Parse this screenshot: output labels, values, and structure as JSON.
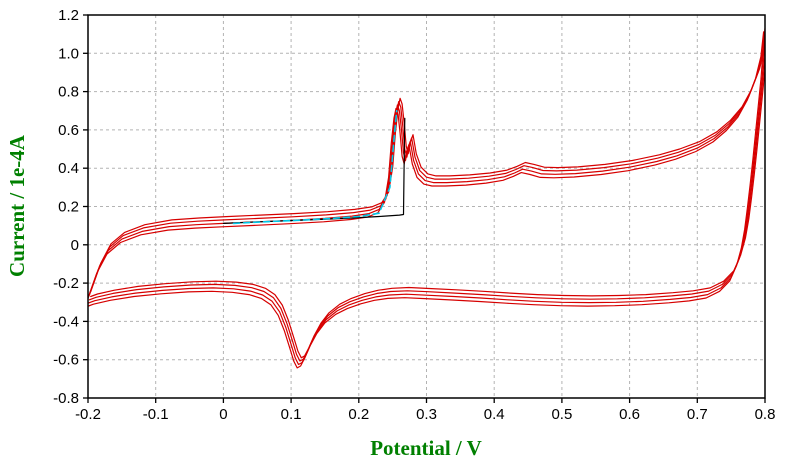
{
  "figure": {
    "background": "#ffffff",
    "axis_color": "#000000",
    "grid_color": "#b3b3b3",
    "label_color": "#008000"
  },
  "chart_data": {
    "type": "line",
    "title": "",
    "xlabel": "Potential / V",
    "ylabel": "Current / 1e-4A",
    "xlim": [
      -0.2,
      0.8
    ],
    "ylim": [
      -0.8,
      1.2
    ],
    "xticks": [
      -0.2,
      -0.1,
      0,
      0.1,
      0.2,
      0.3,
      0.4,
      0.5,
      0.6,
      0.7,
      0.8
    ],
    "xtick_labels": [
      "-0.2",
      "-0.1",
      "0",
      "0.1",
      "0.2",
      "0.3",
      "0.4",
      "0.5",
      "0.6",
      "0.7",
      "0.8"
    ],
    "yticks": [
      -0.8,
      -0.6,
      -0.4,
      -0.2,
      0,
      0.2,
      0.4,
      0.6,
      0.8,
      1.0,
      1.2
    ],
    "ytick_labels": [
      "-0.8",
      "-0.6",
      "-0.4",
      "-0.2",
      "0",
      "0.2",
      "0.4",
      "0.6",
      "0.8",
      "1.0",
      "1.2"
    ],
    "grid": "dashed",
    "legend": "none",
    "series": [
      {
        "name": "cv-cycles-red",
        "color": "#d60000",
        "style": "solid",
        "width": 1.2,
        "repeat_offsets": [
          [
            0,
            0
          ],
          [
            0.002,
            0.018
          ],
          [
            -0.002,
            -0.018
          ],
          [
            0.004,
            0.035
          ]
        ],
        "x": [
          -0.2,
          -0.185,
          -0.17,
          -0.15,
          -0.12,
          -0.08,
          -0.04,
          0.0,
          0.05,
          0.1,
          0.15,
          0.19,
          0.215,
          0.23,
          0.24,
          0.246,
          0.25,
          0.254,
          0.257,
          0.26,
          0.263,
          0.266,
          0.269,
          0.272,
          0.276,
          0.281,
          0.288,
          0.298,
          0.31,
          0.33,
          0.36,
          0.39,
          0.415,
          0.43,
          0.442,
          0.455,
          0.47,
          0.49,
          0.52,
          0.56,
          0.6,
          0.64,
          0.67,
          0.7,
          0.725,
          0.745,
          0.762,
          0.776,
          0.788,
          0.796,
          0.8,
          0.799,
          0.796,
          0.792,
          0.788,
          0.784,
          0.78,
          0.776,
          0.772,
          0.767,
          0.76,
          0.75,
          0.735,
          0.715,
          0.69,
          0.66,
          0.62,
          0.58,
          0.54,
          0.5,
          0.46,
          0.42,
          0.38,
          0.34,
          0.3,
          0.27,
          0.245,
          0.225,
          0.205,
          0.185,
          0.168,
          0.152,
          0.14,
          0.13,
          0.122,
          0.116,
          0.111,
          0.106,
          0.1,
          0.092,
          0.083,
          0.072,
          0.058,
          0.04,
          0.015,
          -0.015,
          -0.05,
          -0.09,
          -0.13,
          -0.165,
          -0.19,
          -0.2
        ],
        "y": [
          -0.28,
          -0.13,
          -0.03,
          0.03,
          0.07,
          0.095,
          0.105,
          0.112,
          0.12,
          0.128,
          0.138,
          0.15,
          0.163,
          0.185,
          0.24,
          0.37,
          0.55,
          0.68,
          0.73,
          0.7,
          0.6,
          0.48,
          0.44,
          0.5,
          0.54,
          0.44,
          0.37,
          0.335,
          0.325,
          0.325,
          0.33,
          0.34,
          0.355,
          0.375,
          0.395,
          0.385,
          0.37,
          0.368,
          0.372,
          0.385,
          0.405,
          0.435,
          0.465,
          0.505,
          0.555,
          0.615,
          0.685,
          0.775,
          0.885,
          1.0,
          1.13,
          1.02,
          0.88,
          0.74,
          0.6,
          0.46,
          0.33,
          0.21,
          0.1,
          0.0,
          -0.09,
          -0.17,
          -0.225,
          -0.26,
          -0.275,
          -0.285,
          -0.295,
          -0.3,
          -0.302,
          -0.3,
          -0.295,
          -0.287,
          -0.278,
          -0.27,
          -0.263,
          -0.258,
          -0.262,
          -0.272,
          -0.29,
          -0.315,
          -0.345,
          -0.39,
          -0.445,
          -0.51,
          -0.575,
          -0.615,
          -0.625,
          -0.59,
          -0.52,
          -0.43,
          -0.35,
          -0.295,
          -0.262,
          -0.242,
          -0.23,
          -0.225,
          -0.228,
          -0.238,
          -0.252,
          -0.272,
          -0.292,
          -0.305
        ]
      },
      {
        "name": "initial-scan-black",
        "color": "#000000",
        "style": "solid",
        "width": 1.2,
        "x": [
          0.0,
          0.04,
          0.09,
          0.14,
          0.19,
          0.23,
          0.26,
          0.266,
          0.267,
          0.268
        ],
        "y": [
          0.112,
          0.118,
          0.125,
          0.132,
          0.14,
          0.148,
          0.155,
          0.158,
          0.45,
          0.66
        ]
      },
      {
        "name": "overlay-cyan-dashed",
        "color": "#00c8e8",
        "style": "dashed",
        "width": 1.6,
        "x": [
          0.015,
          0.06,
          0.11,
          0.16,
          0.2,
          0.23,
          0.246,
          0.252,
          0.256
        ],
        "y": [
          0.112,
          0.12,
          0.128,
          0.138,
          0.148,
          0.165,
          0.3,
          0.55,
          0.7
        ]
      }
    ]
  }
}
